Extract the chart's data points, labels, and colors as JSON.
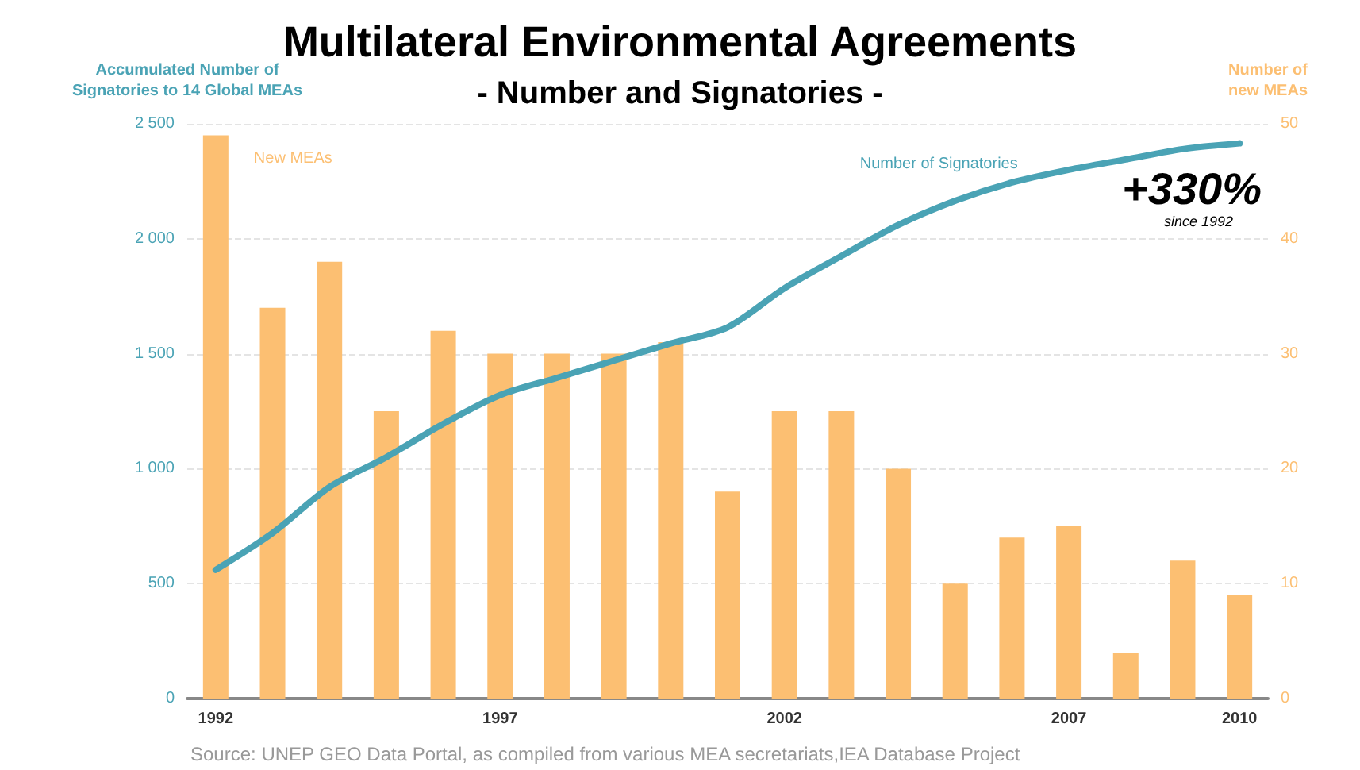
{
  "chart_data": {
    "type": "bar",
    "title": "Multilateral Environmental Agreements",
    "subtitle": "- Number and Signatories -",
    "ylabel": "Accumulated Number of\nSignatories to 14 Global MEAs",
    "y2label": "Number of\nnew MEAs",
    "categories": [
      "1992",
      null,
      null,
      null,
      null,
      "1997",
      null,
      null,
      null,
      null,
      "2002",
      null,
      null,
      null,
      null,
      "2007",
      null,
      null,
      "2010"
    ],
    "series": [
      {
        "name": "New MEAs",
        "axis": "y2",
        "color": "#fcbf72",
        "values": [
          49,
          34,
          38,
          25,
          32,
          30,
          30,
          30,
          31,
          18,
          25,
          25,
          20,
          10,
          14,
          15,
          4,
          12,
          9
        ]
      },
      {
        "name": "Number of Signatories",
        "type": "line",
        "color": "#4aa3b5",
        "values": [
          560,
          720,
          920,
          1050,
          1195,
          1320,
          1395,
          1470,
          1545,
          1615,
          1785,
          1925,
          2060,
          2165,
          2245,
          2300,
          2345,
          2390,
          2415
        ]
      }
    ],
    "ylim": [
      0,
      2500
    ],
    "yticks": [
      0,
      500,
      {
        "value": 1000,
        "label": "1 000"
      },
      {
        "value": 1500,
        "label": "1 500"
      },
      {
        "value": 2000,
        "label": "2 000"
      },
      {
        "value": 2500,
        "label": "2 500"
      }
    ],
    "y2lim": [
      0,
      50
    ],
    "y2ticks": [
      0,
      10,
      20,
      30,
      40,
      50
    ],
    "grid": "y",
    "legend": false,
    "marker": "none",
    "line_style": "solid",
    "annotations": [
      "+330%",
      "since 1992",
      "Source: UNEP GEO Data Portal, as compiled from various MEA secretariats,IEA Database Project"
    ]
  }
}
